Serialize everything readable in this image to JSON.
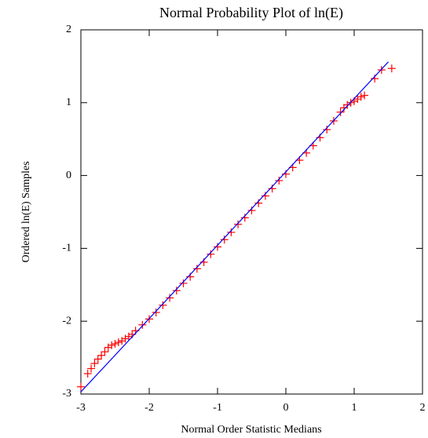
{
  "chart_data": {
    "type": "scatter",
    "title": "Normal Probability Plot of ln(E)",
    "xlabel": "Normal Order Statistic Medians",
    "ylabel": "Ordered ln(E) Samples",
    "xlim": [
      -3,
      2
    ],
    "ylim": [
      -3,
      2
    ],
    "xticks": [
      -3,
      -2,
      -1,
      0,
      1,
      2
    ],
    "yticks": [
      -3,
      -2,
      -1,
      0,
      1,
      2
    ],
    "series": [
      {
        "color": "#ff0000",
        "marker": "+",
        "x": [
          -3.0,
          -2.9,
          -2.85,
          -2.8,
          -2.75,
          -2.7,
          -2.65,
          -2.6,
          -2.55,
          -2.5,
          -2.45,
          -2.4,
          -2.35,
          -2.3,
          -2.25,
          -2.2,
          -2.1,
          -2.0,
          -1.9,
          -1.8,
          -1.7,
          -1.6,
          -1.5,
          -1.4,
          -1.3,
          -1.2,
          -1.1,
          -1.0,
          -0.9,
          -0.8,
          -0.7,
          -0.6,
          -0.5,
          -0.4,
          -0.3,
          -0.2,
          -0.1,
          0,
          0.1,
          0.2,
          0.3,
          0.4,
          0.5,
          0.6,
          0.7,
          0.8,
          0.85,
          0.9,
          0.95,
          1.0,
          1.05,
          1.1,
          1.15,
          1.3,
          1.4,
          1.55
        ],
        "values": [
          -2.9,
          -2.72,
          -2.65,
          -2.58,
          -2.52,
          -2.47,
          -2.42,
          -2.36,
          -2.33,
          -2.31,
          -2.29,
          -2.27,
          -2.24,
          -2.21,
          -2.18,
          -2.13,
          -2.05,
          -1.97,
          -1.88,
          -1.78,
          -1.68,
          -1.58,
          -1.48,
          -1.39,
          -1.28,
          -1.19,
          -1.08,
          -0.98,
          -0.88,
          -0.78,
          -0.67,
          -0.58,
          -0.48,
          -0.38,
          -0.28,
          -0.18,
          -0.07,
          0.02,
          0.11,
          0.21,
          0.31,
          0.41,
          0.52,
          0.63,
          0.75,
          0.87,
          0.93,
          0.97,
          1.0,
          1.02,
          1.05,
          1.08,
          1.1,
          1.33,
          1.45,
          1.47
        ]
      },
      {
        "color": "#0000ff",
        "marker": "line",
        "x": [
          -3.0,
          1.5
        ],
        "values": [
          -2.97,
          1.56
        ]
      }
    ]
  }
}
